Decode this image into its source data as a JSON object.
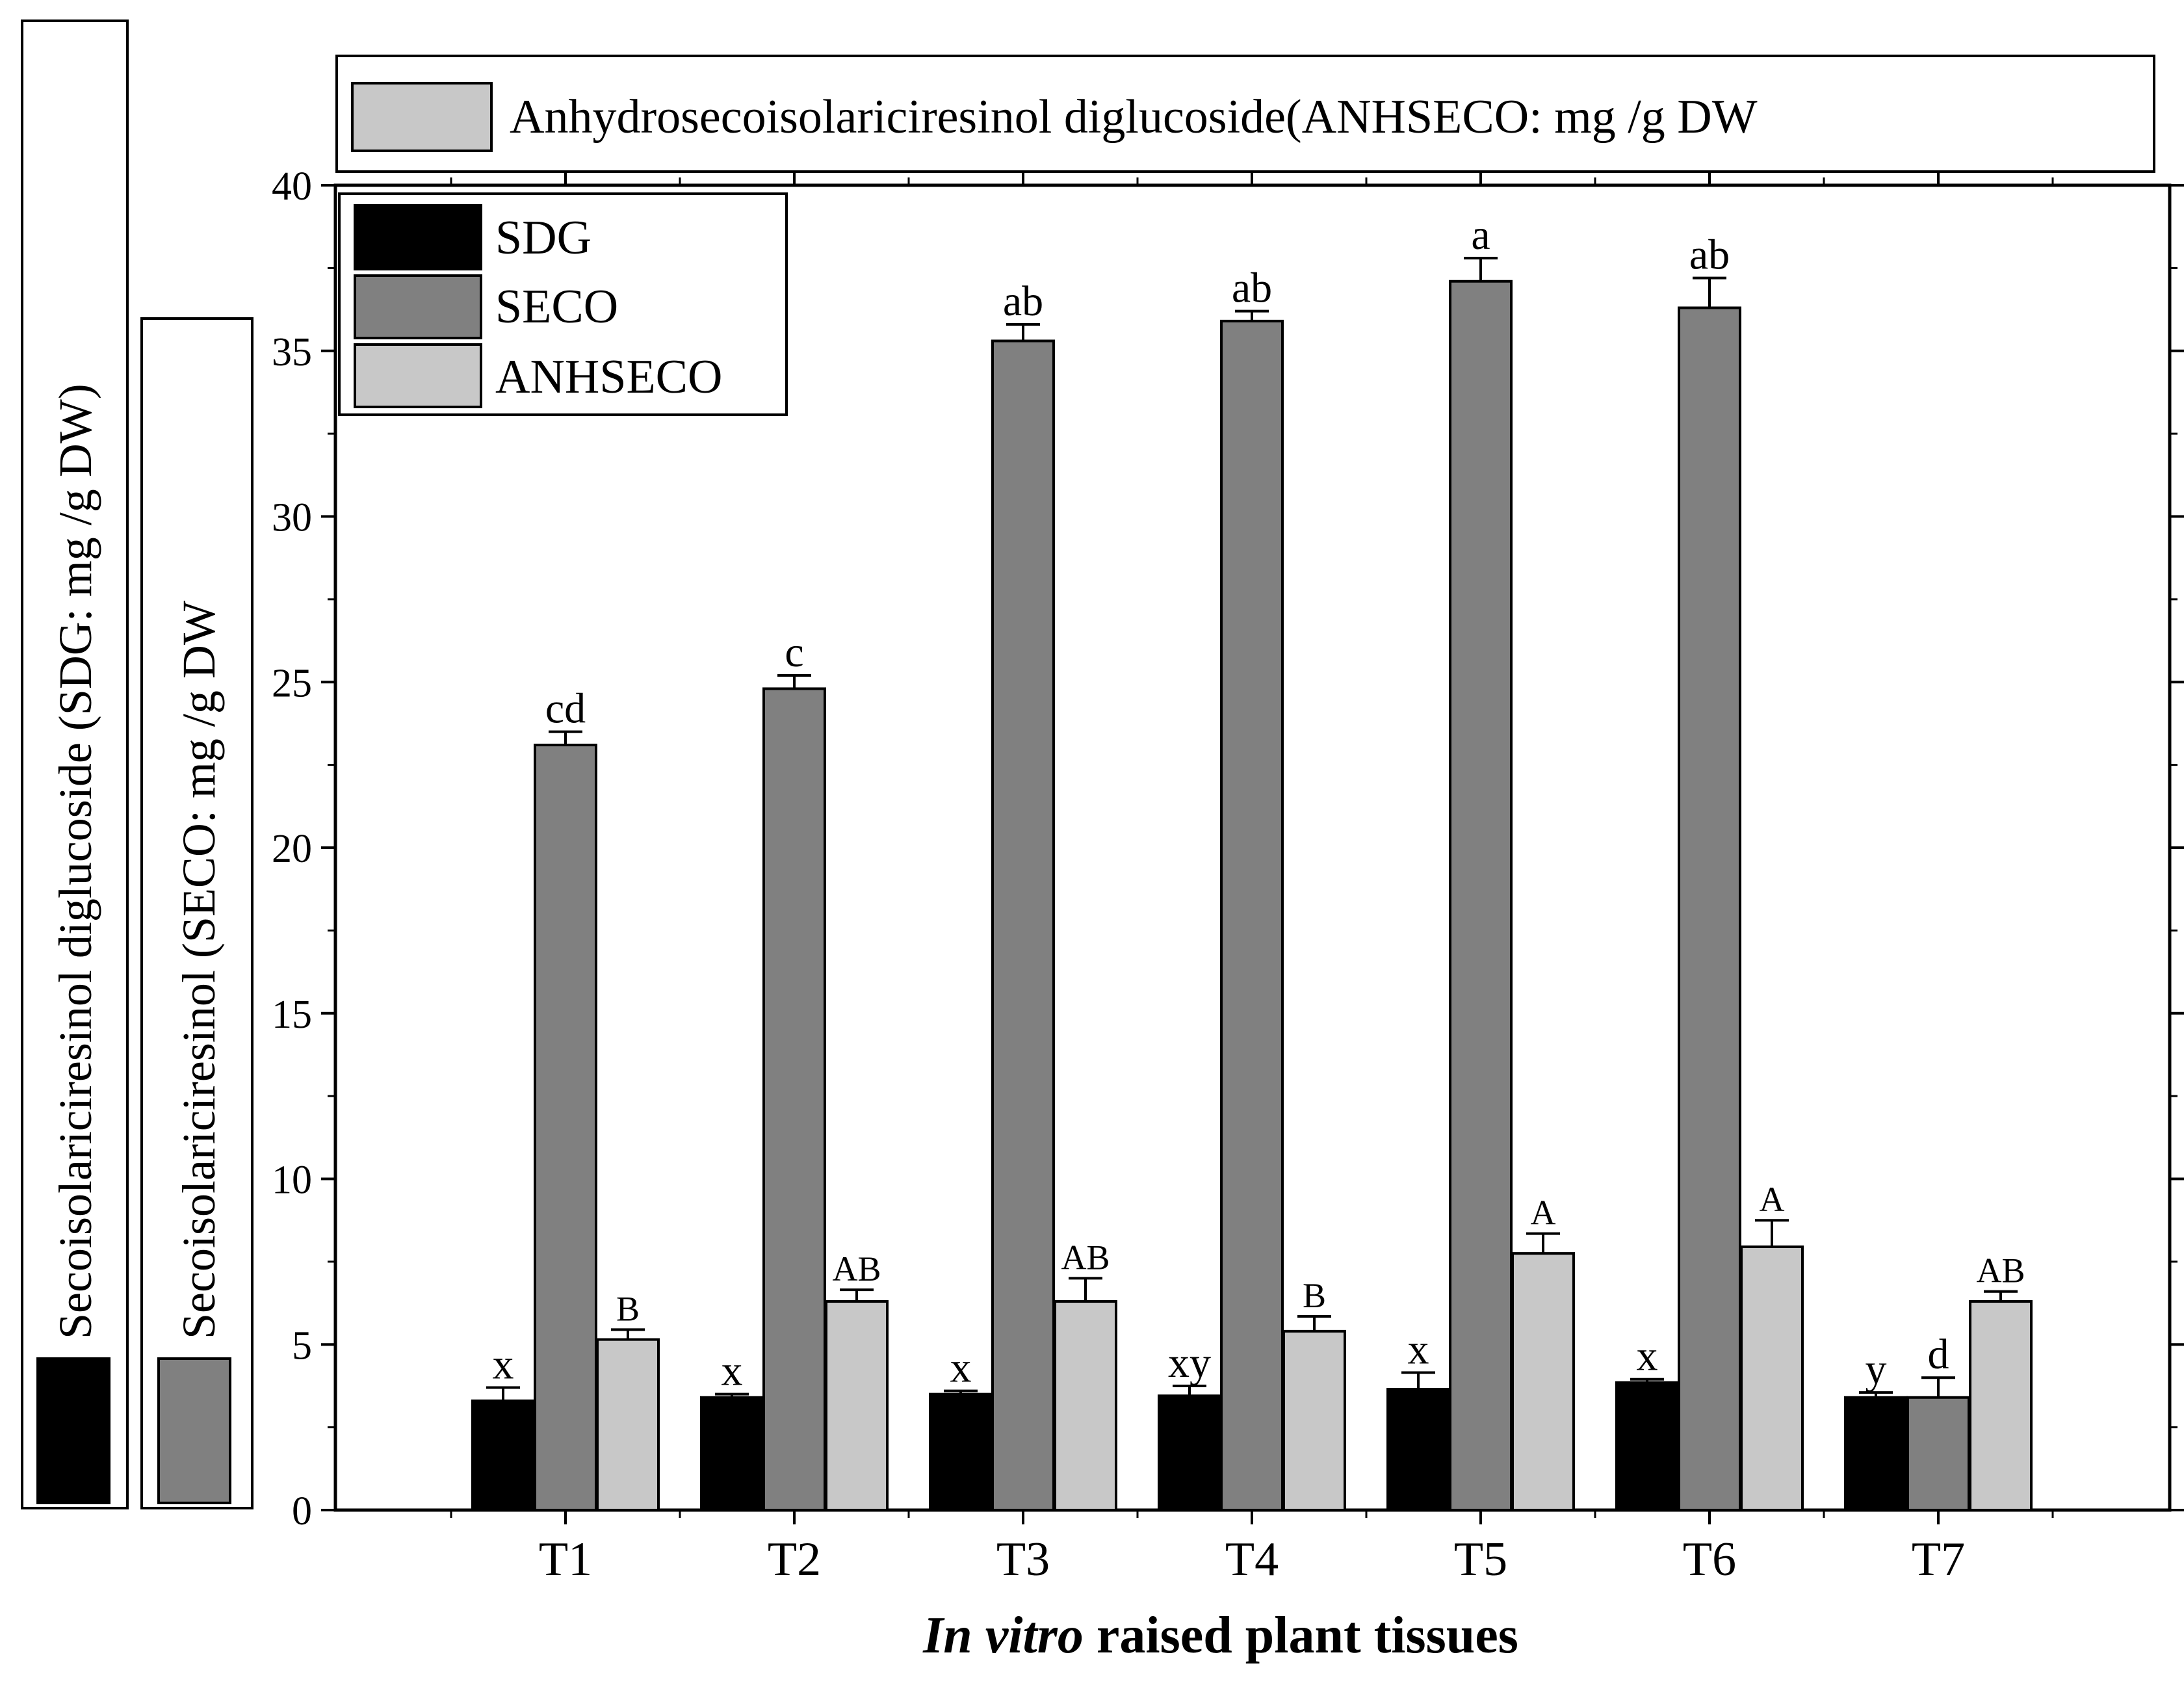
{
  "chart_data": {
    "type": "bar",
    "xlabel_italic": "In vitro",
    "xlabel_rest": " raised plant tissues",
    "ylabel_sdg": "Secoisolariciresinol diglucoside (SDG: mg /g DW)",
    "ylabel_seco": "Secoisolariciresinol (SECO: mg /g DW",
    "ylabel_anhseco": "Anhydrosecoisolariciresinol diglucoside(ANHSECO: mg /g DW",
    "ylim": [
      0,
      40
    ],
    "yticks": [
      "0",
      "5",
      "10",
      "15",
      "20",
      "25",
      "30",
      "35",
      "40"
    ],
    "categories": [
      "T1",
      "T2",
      "T3",
      "T4",
      "T5",
      "T6",
      "T7"
    ],
    "legend": [
      "SDG",
      "SECO",
      "ANHSECO"
    ],
    "colors": {
      "SDG": "#000000",
      "SECO": "#808080",
      "ANHSECO": "#c8c8c8"
    },
    "series": [
      {
        "name": "SDG",
        "values": [
          3.3,
          3.4,
          3.5,
          3.45,
          3.65,
          3.85,
          3.4
        ],
        "errors": [
          0.4,
          0.1,
          0.1,
          0.3,
          0.5,
          0.1,
          0.15
        ],
        "labels": [
          "x",
          "x",
          "x",
          "xy",
          "x",
          "x",
          "y"
        ]
      },
      {
        "name": "SECO",
        "values": [
          23.1,
          24.8,
          35.3,
          35.9,
          37.1,
          36.3,
          3.4
        ],
        "errors": [
          0.4,
          0.4,
          0.5,
          0.3,
          0.7,
          0.9,
          0.6
        ],
        "labels": [
          "cd",
          "c",
          "ab",
          "ab",
          "a",
          "ab",
          "d"
        ]
      },
      {
        "name": "ANHSECO",
        "values": [
          5.15,
          6.3,
          6.3,
          5.4,
          7.75,
          7.95,
          6.3
        ],
        "errors": [
          0.3,
          0.35,
          0.7,
          0.45,
          0.6,
          0.8,
          0.3
        ],
        "labels": [
          "B",
          "AB",
          "AB",
          "B",
          "A",
          "A",
          "AB"
        ]
      }
    ]
  }
}
